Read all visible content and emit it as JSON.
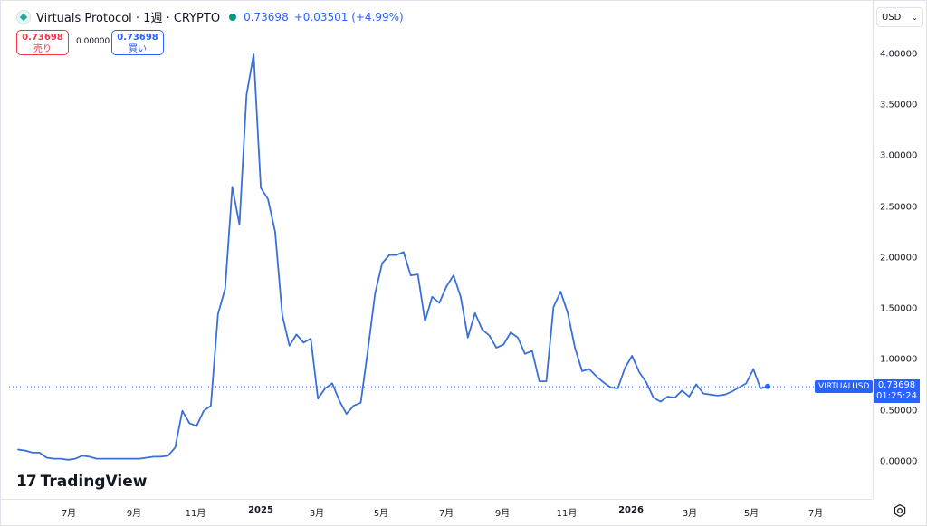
{
  "header": {
    "title": "Virtuals Protocol · 1週 · CRYPTO",
    "last_price": "0.73698",
    "change": "+0.03501 (+4.99%)"
  },
  "quote": {
    "sell_price": "0.73698",
    "sell_label": "売り",
    "spread": "0.00000",
    "buy_price": "0.73698",
    "buy_label": "買い"
  },
  "currency": {
    "label": "USD"
  },
  "price_axis": {
    "ticks": [
      "4.00000",
      "3.50000",
      "3.00000",
      "2.50000",
      "2.00000",
      "1.50000",
      "1.00000",
      "0.50000",
      "0.00000"
    ]
  },
  "time_axis": {
    "ticks": [
      {
        "label": "7月",
        "bold": false
      },
      {
        "label": "9月",
        "bold": false
      },
      {
        "label": "11月",
        "bold": false
      },
      {
        "label": "2025",
        "bold": true
      },
      {
        "label": "3月",
        "bold": false
      },
      {
        "label": "5月",
        "bold": false
      },
      {
        "label": "7月",
        "bold": false
      },
      {
        "label": "9月",
        "bold": false
      },
      {
        "label": "11月",
        "bold": false
      },
      {
        "label": "2026",
        "bold": true
      },
      {
        "label": "3月",
        "bold": false
      },
      {
        "label": "5月",
        "bold": false
      },
      {
        "label": "7月",
        "bold": false
      }
    ]
  },
  "last_price_tag": {
    "symbol": "VIRTUALUSD",
    "price": "0.73698",
    "countdown": "01:25:24"
  },
  "branding": {
    "logo_text": "TradingView"
  },
  "colors": {
    "line": "#3a6fd8",
    "accent": "#2962ff",
    "sell": "#f23645",
    "up": "#089981"
  },
  "chart_data": {
    "type": "line",
    "title": "Virtuals Protocol · 1週 · CRYPTO",
    "series": [
      {
        "name": "VIRTUALUSD",
        "values": [
          0.12,
          0.11,
          0.09,
          0.09,
          0.04,
          0.03,
          0.03,
          0.02,
          0.03,
          0.06,
          0.05,
          0.03,
          0.03,
          0.03,
          0.03,
          0.03,
          0.03,
          0.03,
          0.04,
          0.05,
          0.05,
          0.06,
          0.14,
          0.5,
          0.38,
          0.35,
          0.5,
          0.55,
          1.45,
          1.7,
          2.7,
          2.33,
          3.6,
          4.0,
          2.69,
          2.58,
          2.26,
          1.44,
          1.14,
          1.25,
          1.17,
          1.21,
          0.62,
          0.72,
          0.77,
          0.6,
          0.47,
          0.55,
          0.58,
          1.1,
          1.65,
          1.95,
          2.03,
          2.03,
          2.06,
          1.83,
          1.84,
          1.38,
          1.62,
          1.56,
          1.72,
          1.83,
          1.62,
          1.22,
          1.46,
          1.3,
          1.24,
          1.12,
          1.15,
          1.27,
          1.22,
          1.06,
          1.09,
          0.79,
          0.79,
          1.52,
          1.67,
          1.46,
          1.12,
          0.89,
          0.91,
          0.84,
          0.78,
          0.73,
          0.72,
          0.92,
          1.04,
          0.88,
          0.78,
          0.63,
          0.59,
          0.64,
          0.63,
          0.7,
          0.64,
          0.76,
          0.67,
          0.66,
          0.65,
          0.66,
          0.69,
          0.73,
          0.77,
          0.91,
          0.72,
          0.74
        ]
      }
    ],
    "ylim": [
      0,
      4
    ],
    "last_value": 0.73698,
    "grid": false
  }
}
